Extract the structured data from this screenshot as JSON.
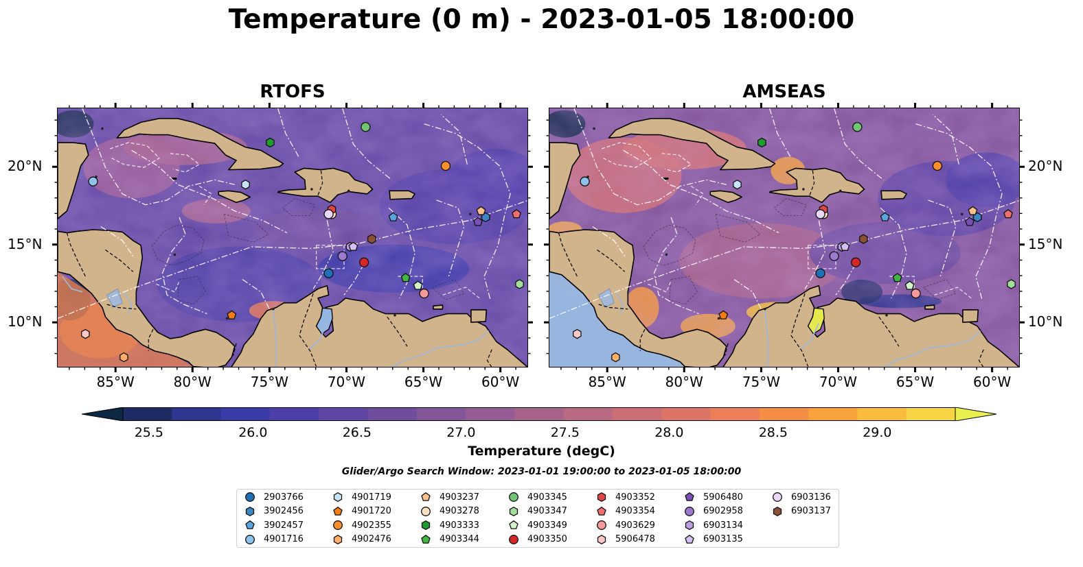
{
  "title": "Temperature (0 m) - 2023-01-05 18:00:00",
  "panels": [
    {
      "title": "RTOFS",
      "variant": "rtofs"
    },
    {
      "title": "AMSEAS",
      "variant": "amseas"
    }
  ],
  "axes": {
    "lon_ticks": [
      "85°W",
      "80°W",
      "75°W",
      "70°W",
      "65°W",
      "60°W"
    ],
    "lat_ticks": [
      "20°N",
      "15°N",
      "10°N"
    ]
  },
  "colorbar": {
    "label": "Temperature (degC)",
    "ticks": [
      "25.5",
      "26.0",
      "26.5",
      "27.0",
      "27.5",
      "28.0",
      "28.5",
      "29.0"
    ],
    "colormap": [
      "#0d2842",
      "#1e2c66",
      "#2d3790",
      "#3b3ba8",
      "#4d3fa8",
      "#5f46a3",
      "#714d9e",
      "#83569a",
      "#955d93",
      "#a8638b",
      "#b96a82",
      "#cb6f75",
      "#dc7567",
      "#ec7f55",
      "#f48e44",
      "#f8a23b",
      "#f9bc3c",
      "#f7d545",
      "#eaf050"
    ]
  },
  "search_window": "Glider/Argo Search Window: 2023-01-01 19:00:00 to 2023-01-05 18:00:00",
  "legend": [
    {
      "id": "2903766",
      "marker": "circle",
      "color": "#1f6fb4"
    },
    {
      "id": "3902456",
      "marker": "hexagon",
      "color": "#3d86c6"
    },
    {
      "id": "3902457",
      "marker": "pentagon",
      "color": "#5aa5dd"
    },
    {
      "id": "4901716",
      "marker": "circle",
      "color": "#8ec4ec"
    },
    {
      "id": "4901719",
      "marker": "hexagon",
      "color": "#c8e4f8"
    },
    {
      "id": "4901720",
      "marker": "pentagon",
      "color": "#f57d15"
    },
    {
      "id": "4902355",
      "marker": "circle",
      "color": "#fb8f2e"
    },
    {
      "id": "4902476",
      "marker": "hexagon",
      "color": "#fdae6b"
    },
    {
      "id": "4903237",
      "marker": "pentagon",
      "color": "#fdc08c"
    },
    {
      "id": "4903278",
      "marker": "circle",
      "color": "#fee0c6"
    },
    {
      "id": "4903333",
      "marker": "hexagon",
      "color": "#1e9a2e"
    },
    {
      "id": "4903344",
      "marker": "pentagon",
      "color": "#42b542"
    },
    {
      "id": "4903345",
      "marker": "circle",
      "color": "#74c476"
    },
    {
      "id": "4903347",
      "marker": "hexagon",
      "color": "#a1dd9b"
    },
    {
      "id": "4903349",
      "marker": "pentagon",
      "color": "#d2f2c9"
    },
    {
      "id": "4903350",
      "marker": "circle",
      "color": "#d62728"
    },
    {
      "id": "4903352",
      "marker": "hexagon",
      "color": "#e04545"
    },
    {
      "id": "4903354",
      "marker": "pentagon",
      "color": "#ef6e6e"
    },
    {
      "id": "4903629",
      "marker": "circle",
      "color": "#f49a9a"
    },
    {
      "id": "5906478",
      "marker": "hexagon",
      "color": "#fbc8c8"
    },
    {
      "id": "5906480",
      "marker": "pentagon",
      "color": "#7b4fb8"
    },
    {
      "id": "6902958",
      "marker": "circle",
      "color": "#9d79cf"
    },
    {
      "id": "6903134",
      "marker": "hexagon",
      "color": "#bb9ee2"
    },
    {
      "id": "6903135",
      "marker": "pentagon",
      "color": "#d4bff0"
    },
    {
      "id": "6903136",
      "marker": "circle",
      "color": "#ead9fb"
    },
    {
      "id": "6903137",
      "marker": "hexagon",
      "color": "#8b5038"
    }
  ],
  "floats": [
    {
      "id": "2903766",
      "lon": -71.2,
      "lat": 13.2
    },
    {
      "id": "3902456",
      "lon": -61.0,
      "lat": 16.8
    },
    {
      "id": "3902457",
      "lon": -67.0,
      "lat": 16.8
    },
    {
      "id": "4901716",
      "lon": -86.5,
      "lat": 19.1
    },
    {
      "id": "4901719",
      "lon": -76.6,
      "lat": 18.9
    },
    {
      "id": "4901720",
      "lon": -77.5,
      "lat": 10.5
    },
    {
      "id": "4902355",
      "lon": -63.6,
      "lat": 20.1
    },
    {
      "id": "4902476",
      "lon": -84.5,
      "lat": 7.8
    },
    {
      "id": "4903237",
      "lon": -61.3,
      "lat": 17.2
    },
    {
      "id": "4903278",
      "lon": -71.0,
      "lat": 17.0
    },
    {
      "id": "4903333",
      "lon": -75.0,
      "lat": 21.6
    },
    {
      "id": "4903344",
      "lon": -66.2,
      "lat": 12.9
    },
    {
      "id": "4903345",
      "lon": -68.8,
      "lat": 22.6
    },
    {
      "id": "4903347",
      "lon": -58.8,
      "lat": 12.5
    },
    {
      "id": "4903349",
      "lon": -65.4,
      "lat": 12.4
    },
    {
      "id": "4903350",
      "lon": -68.9,
      "lat": 13.9
    },
    {
      "id": "4903352",
      "lon": -71.0,
      "lat": 17.3
    },
    {
      "id": "4903354",
      "lon": -59.0,
      "lat": 17.0
    },
    {
      "id": "4903629",
      "lon": -65.0,
      "lat": 11.9
    },
    {
      "id": "5906478",
      "lon": -87.0,
      "lat": 9.3
    },
    {
      "id": "5906480",
      "lon": -61.5,
      "lat": 16.5
    },
    {
      "id": "6902958",
      "lon": -70.3,
      "lat": 14.3
    },
    {
      "id": "6903134",
      "lon": -69.8,
      "lat": 14.9
    },
    {
      "id": "6903135",
      "lon": -69.6,
      "lat": 14.9
    },
    {
      "id": "6903136",
      "lon": -71.2,
      "lat": 17.0
    },
    {
      "id": "6903137",
      "lon": -68.4,
      "lat": 15.4
    }
  ]
}
